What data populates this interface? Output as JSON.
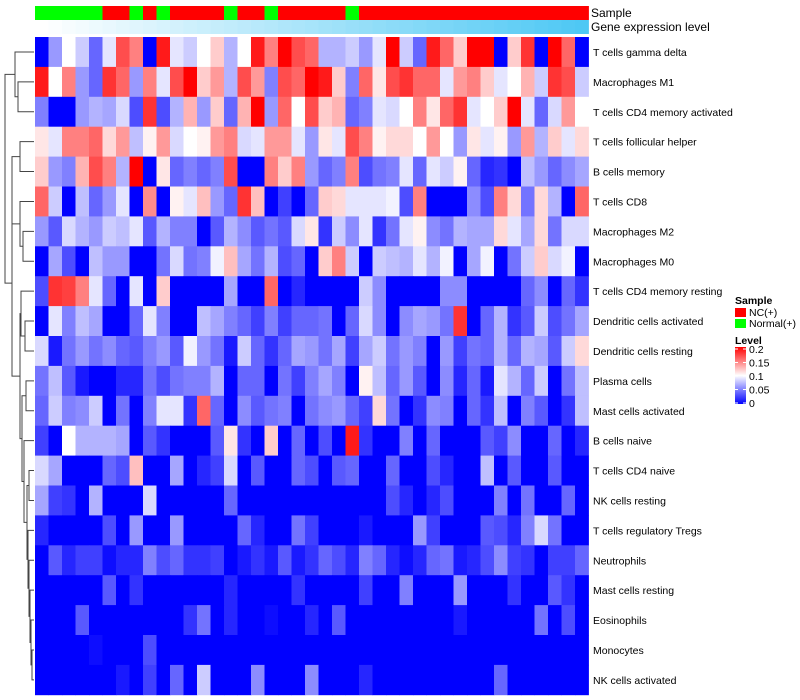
{
  "chart_data": {
    "type": "heatmap",
    "annotation_labels": {
      "sample": "Sample",
      "gene_expression": "Gene expression level"
    },
    "legend": {
      "sample_title": "Sample",
      "sample_entries": [
        {
          "label": "NC(+)",
          "color": "#FF0000"
        },
        {
          "label": "Normal(+)",
          "color": "#00FF00"
        }
      ],
      "level_title": "Level",
      "level_ticks": [
        "0.2",
        "0.15",
        "0.1",
        "0.05",
        "0"
      ],
      "level_range": [
        0,
        0.2
      ],
      "level_colors": {
        "low": "#0000FF",
        "mid": "#FFFFFF",
        "high": "#FF0000"
      },
      "placement": "right"
    },
    "gene_expression_colors": {
      "low": "#FFFFFF",
      "high": "#4EC8F4"
    },
    "samples": [
      "Normal",
      "Normal",
      "Normal",
      "Normal",
      "Normal",
      "NC",
      "NC",
      "Normal",
      "NC",
      "Normal",
      "NC",
      "NC",
      "NC",
      "NC",
      "Normal",
      "NC",
      "NC",
      "Normal",
      "NC",
      "NC",
      "NC",
      "NC",
      "NC",
      "Normal",
      "NC",
      "NC",
      "NC",
      "NC",
      "NC",
      "NC",
      "NC",
      "NC",
      "NC",
      "NC",
      "NC",
      "NC",
      "NC",
      "NC",
      "NC",
      "NC",
      "NC"
    ],
    "rows": [
      {
        "name": "T cells gamma delta",
        "values": [
          0,
          0.06,
          0.1,
          0.08,
          0.04,
          0.09,
          0.17,
          0.15,
          0,
          0.19,
          0.09,
          0.08,
          0.1,
          0.12,
          0.07,
          0.1,
          0.19,
          0.15,
          0.2,
          0.17,
          0.16,
          0.07,
          0.07,
          0.08,
          0.06,
          0.09,
          0.2,
          0.08,
          0.04,
          0.19,
          0.16,
          0.12,
          0.2,
          0.2,
          0,
          0.12,
          0.18,
          0,
          0.2,
          0.16,
          0
        ]
      },
      {
        "name": "Macrophages M1",
        "values": [
          0.19,
          0.1,
          0.15,
          0.06,
          0.04,
          0.18,
          0.16,
          0.06,
          0.15,
          0.09,
          0.17,
          0.2,
          0.12,
          0.14,
          0.07,
          0.17,
          0.14,
          0.05,
          0.17,
          0.16,
          0.2,
          0.19,
          0.12,
          0.05,
          0.16,
          0.11,
          0.17,
          0.18,
          0.16,
          0.16,
          0.09,
          0.14,
          0.15,
          0.12,
          0.09,
          0.1,
          0.13,
          0.08,
          0.18,
          0.17,
          0.08
        ]
      },
      {
        "name": "T cells CD4 memory activated",
        "values": [
          0.05,
          0,
          0,
          0.06,
          0.07,
          0.065,
          0.085,
          0.03,
          0.18,
          0.03,
          0.07,
          0.13,
          0.06,
          0.12,
          0.04,
          0.13,
          0.2,
          0.06,
          0.16,
          0.1,
          0.17,
          0.12,
          0.13,
          0.04,
          0.05,
          0.09,
          0.085,
          0.1,
          0.15,
          0.11,
          0.16,
          0.18,
          0.09,
          0.1,
          0.12,
          0.2,
          0.09,
          0.04,
          0.085,
          0.14,
          0.1
        ]
      },
      {
        "name": "T cells follicular helper",
        "values": [
          0.11,
          0.09,
          0.15,
          0.15,
          0.16,
          0.115,
          0.14,
          0.075,
          0.105,
          0.14,
          0.085,
          0.1,
          0.105,
          0.14,
          0.15,
          0.085,
          0.09,
          0.14,
          0.14,
          0.09,
          0.06,
          0.11,
          0.09,
          0.17,
          0.15,
          0.105,
          0.115,
          0.115,
          0.1,
          0.14,
          0.1,
          0.06,
          0.11,
          0.09,
          0.105,
          0.06,
          0.14,
          0.07,
          0.12,
          0.09,
          0.115
        ]
      },
      {
        "name": "B cells memory",
        "values": [
          0.12,
          0.06,
          0.05,
          0.13,
          0.17,
          0.15,
          0.07,
          0.2,
          0,
          0.11,
          0.04,
          0.05,
          0.04,
          0.05,
          0.17,
          0,
          0,
          0.15,
          0.12,
          0.15,
          0.06,
          0.04,
          0.05,
          0.15,
          0.03,
          0.045,
          0.05,
          0.09,
          0.04,
          0.09,
          0.08,
          0.105,
          0.04,
          0.015,
          0.02,
          0,
          0.075,
          0.06,
          0.04,
          0.055,
          0.065
        ]
      },
      {
        "name": "T cells CD8",
        "values": [
          0.16,
          0.08,
          0,
          0.075,
          0.04,
          0.06,
          0.09,
          0,
          0.145,
          0,
          0.105,
          0.09,
          0.125,
          0.06,
          0.04,
          0.18,
          0.125,
          0,
          0.025,
          0,
          0.04,
          0.12,
          0.115,
          0.09,
          0.09,
          0.09,
          0.095,
          0.03,
          0.15,
          0,
          0,
          0,
          0.055,
          0.03,
          0.15,
          0.115,
          0.045,
          0.115,
          0.07,
          0,
          0.16
        ]
      },
      {
        "name": "Macrophages M2",
        "values": [
          0.06,
          0.035,
          0.085,
          0.07,
          0.06,
          0.08,
          0.075,
          0.09,
          0.035,
          0.07,
          0.05,
          0.05,
          0,
          0.035,
          0.07,
          0.055,
          0.035,
          0.045,
          0.035,
          0.085,
          0.11,
          0.02,
          0.08,
          0.055,
          0.09,
          0.02,
          0.045,
          0.09,
          0.105,
          0.055,
          0.045,
          0.07,
          0.065,
          0.065,
          0.115,
          0.09,
          0.065,
          0.115,
          0.045,
          0.085,
          0.085
        ]
      },
      {
        "name": "Macrophages M0",
        "values": [
          0,
          0.065,
          0.03,
          0,
          0.075,
          0.06,
          0.06,
          0,
          0,
          0.045,
          0.085,
          0.045,
          0.05,
          0.095,
          0.125,
          0.065,
          0.045,
          0.07,
          0.03,
          0.04,
          0,
          0.12,
          0.15,
          0.08,
          0,
          0.08,
          0.075,
          0.07,
          0.09,
          0.07,
          0.095,
          0,
          0.065,
          0.095,
          0,
          0.045,
          0.08,
          0.12,
          0.085,
          0.095,
          0
        ]
      },
      {
        "name": "T cells CD4 memory resting",
        "values": [
          0.03,
          0.18,
          0.175,
          0.15,
          0.09,
          0.04,
          0,
          0.09,
          0,
          0.12,
          0,
          0,
          0,
          0,
          0.065,
          0,
          0,
          0.16,
          0,
          0.015,
          0,
          0,
          0,
          0,
          0.08,
          0.055,
          0,
          0,
          0,
          0,
          0.055,
          0.055,
          0,
          0,
          0,
          0,
          0.04,
          0.055,
          0,
          0.04,
          0.02
        ]
      },
      {
        "name": "Dendritic cells activated",
        "values": [
          0,
          0.09,
          0.05,
          0.075,
          0.065,
          0,
          0,
          0.04,
          0.09,
          0.05,
          0,
          0,
          0.075,
          0.065,
          0.05,
          0.04,
          0.025,
          0.05,
          0.025,
          0.04,
          0.04,
          0.045,
          0,
          0.04,
          0.085,
          0.055,
          0,
          0.055,
          0.065,
          0.06,
          0.045,
          0.18,
          0,
          0.04,
          0.07,
          0.02,
          0.035,
          0.08,
          0.03,
          0.045,
          0.065
        ]
      },
      {
        "name": "Dendritic cells resting",
        "values": [
          0.085,
          0.01,
          0.045,
          0.06,
          0.045,
          0.055,
          0.04,
          0.035,
          0.05,
          0.06,
          0.035,
          0.095,
          0.06,
          0.045,
          0.01,
          0.08,
          0.04,
          0.02,
          0.04,
          0.065,
          0.06,
          0.045,
          0.065,
          0.025,
          0.065,
          0.08,
          0.045,
          0.06,
          0.05,
          0,
          0.06,
          0.025,
          0.045,
          0.04,
          0.07,
          0.04,
          0.07,
          0.065,
          0.035,
          0.08,
          0.115
        ]
      },
      {
        "name": "Plasma cells",
        "values": [
          0.045,
          0.075,
          0.035,
          0.01,
          0,
          0,
          0.015,
          0.015,
          0.045,
          0.03,
          0.045,
          0.05,
          0.05,
          0.07,
          0,
          0.04,
          0.04,
          0,
          0.045,
          0.025,
          0.05,
          0.065,
          0.05,
          0,
          0.105,
          0.075,
          0.04,
          0.06,
          0.035,
          0,
          0.055,
          0.015,
          0.04,
          0.01,
          0.09,
          0.07,
          0.04,
          0.08,
          0,
          0.045,
          0.075
        ]
      },
      {
        "name": "Mast cells activated",
        "values": [
          0.04,
          0.08,
          0.05,
          0.055,
          0.08,
          0,
          0.045,
          0,
          0.05,
          0.09,
          0.09,
          0.02,
          0.16,
          0.04,
          0,
          0.055,
          0.035,
          0.045,
          0.05,
          0,
          0.045,
          0.055,
          0.06,
          0.04,
          0.025,
          0.115,
          0.045,
          0,
          0.02,
          0.055,
          0.05,
          0,
          0.04,
          0.02,
          0.075,
          0,
          0.05,
          0.035,
          0,
          0.02,
          0.075
        ]
      },
      {
        "name": "B cells naive",
        "values": [
          0.025,
          0,
          0.1,
          0.07,
          0.07,
          0.07,
          0.065,
          0,
          0.035,
          0.02,
          0,
          0,
          0,
          0.035,
          0.11,
          0.02,
          0,
          0.12,
          0,
          0.04,
          0,
          0.03,
          0,
          0.19,
          0.02,
          0,
          0,
          0.05,
          0,
          0.04,
          0,
          0,
          0,
          0.035,
          0.025,
          0.055,
          0,
          0,
          0.04,
          0,
          0.015
        ]
      },
      {
        "name": "T cells CD4 naive",
        "values": [
          0.085,
          0.065,
          0,
          0,
          0,
          0.04,
          0.03,
          0.125,
          0,
          0,
          0.065,
          0,
          0.015,
          0.025,
          0.085,
          0,
          0.035,
          0,
          0,
          0.04,
          0.03,
          0,
          0.035,
          0.04,
          0,
          0,
          0.04,
          0,
          0,
          0.03,
          0.015,
          0,
          0,
          0.075,
          0,
          0.035,
          0,
          0,
          0.035,
          0,
          0
        ]
      },
      {
        "name": "NK cells resting",
        "values": [
          0.065,
          0.025,
          0.02,
          0,
          0.07,
          0,
          0,
          0,
          0.085,
          0,
          0,
          0,
          0,
          0,
          0.04,
          0,
          0,
          0,
          0,
          0,
          0,
          0,
          0,
          0,
          0,
          0,
          0.03,
          0.015,
          0,
          0.015,
          0.03,
          0,
          0,
          0,
          0.05,
          0,
          0.045,
          0,
          0,
          0.04,
          0
        ]
      },
      {
        "name": "T cells regulatory  Tregs",
        "values": [
          0.015,
          0,
          0,
          0,
          0,
          0.03,
          0,
          0.06,
          0,
          0,
          0.06,
          0,
          0,
          0,
          0,
          0.04,
          0.015,
          0,
          0,
          0.045,
          0.025,
          0,
          0,
          0,
          0.01,
          0,
          0,
          0,
          0.06,
          0.025,
          0,
          0,
          0,
          0.035,
          0.03,
          0.015,
          0.05,
          0.085,
          0.045,
          0,
          0
        ]
      },
      {
        "name": "Neutrophils",
        "values": [
          0,
          0.035,
          0.015,
          0.025,
          0.025,
          0.005,
          0.015,
          0.015,
          0.05,
          0.03,
          0.04,
          0.02,
          0.02,
          0.025,
          0,
          0.01,
          0.02,
          0.01,
          0.035,
          0.01,
          0.02,
          0.04,
          0.03,
          0.015,
          0.05,
          0.04,
          0.015,
          0.005,
          0.015,
          0.04,
          0.045,
          0.01,
          0.015,
          0.03,
          0.055,
          0.025,
          0.02,
          0,
          0.025,
          0.025,
          0.04
        ]
      },
      {
        "name": "Mast cells resting",
        "values": [
          0,
          0,
          0,
          0,
          0,
          0.035,
          0,
          0.02,
          0,
          0,
          0,
          0,
          0,
          0,
          0.015,
          0,
          0,
          0,
          0,
          0.02,
          0,
          0,
          0,
          0,
          0.025,
          0,
          0,
          0.05,
          0,
          0,
          0,
          0.06,
          0,
          0,
          0,
          0.02,
          0,
          0,
          0.035,
          0.02,
          0
        ]
      },
      {
        "name": "Eosinophils",
        "values": [
          0,
          0,
          0,
          0.035,
          0,
          0,
          0,
          0,
          0,
          0,
          0,
          0.02,
          0.045,
          0,
          0.015,
          0,
          0,
          0.005,
          0,
          0,
          0.015,
          0,
          0.035,
          0,
          0,
          0,
          0,
          0,
          0,
          0,
          0,
          0.01,
          0,
          0,
          0,
          0,
          0,
          0.045,
          0,
          0.03,
          0
        ]
      },
      {
        "name": "Monocytes",
        "values": [
          0,
          0,
          0,
          0,
          0.005,
          0,
          0,
          0,
          0.03,
          0,
          0,
          0,
          0,
          0,
          0,
          0,
          0,
          0,
          0,
          0,
          0,
          0,
          0,
          0,
          0,
          0,
          0,
          0,
          0,
          0,
          0,
          0,
          0,
          0,
          0,
          0,
          0,
          0,
          0,
          0,
          0
        ]
      },
      {
        "name": "NK cells activated",
        "values": [
          0,
          0,
          0,
          0,
          0,
          0,
          0.01,
          0,
          0.025,
          0,
          0.04,
          0,
          0.08,
          0,
          0,
          0,
          0.055,
          0,
          0,
          0,
          0.055,
          0,
          0,
          0,
          0.015,
          0,
          0,
          0,
          0,
          0,
          0,
          0,
          0,
          0,
          0.04,
          0,
          0,
          0,
          0,
          0,
          0
        ]
      }
    ]
  }
}
